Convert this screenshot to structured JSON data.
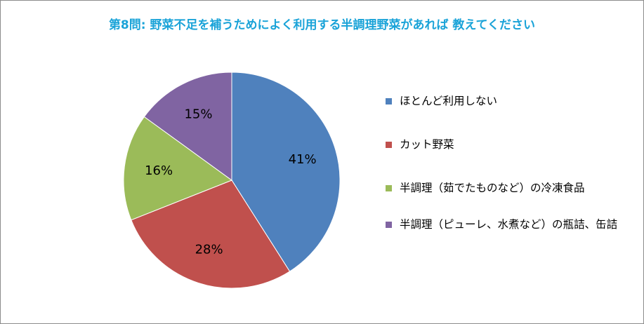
{
  "chart_data": {
    "type": "pie",
    "title": "第8問: 野菜不足を補うためによく利用する半調理野菜があれば 教えてください",
    "slices": [
      {
        "label": "ほとんど利用しない",
        "value": 41,
        "display": "41%",
        "color": "#4f81bd"
      },
      {
        "label": "カット野菜",
        "value": 28,
        "display": "28%",
        "color": "#c0504d"
      },
      {
        "label": "半調理（茹でたものなど）の冷凍食品",
        "value": 16,
        "display": "16%",
        "color": "#9bbb59"
      },
      {
        "label": "半調理（ピューレ、水煮など）の瓶詰、缶詰",
        "value": 15,
        "display": "15%",
        "color": "#8064a2"
      }
    ],
    "legend_position": "right"
  }
}
